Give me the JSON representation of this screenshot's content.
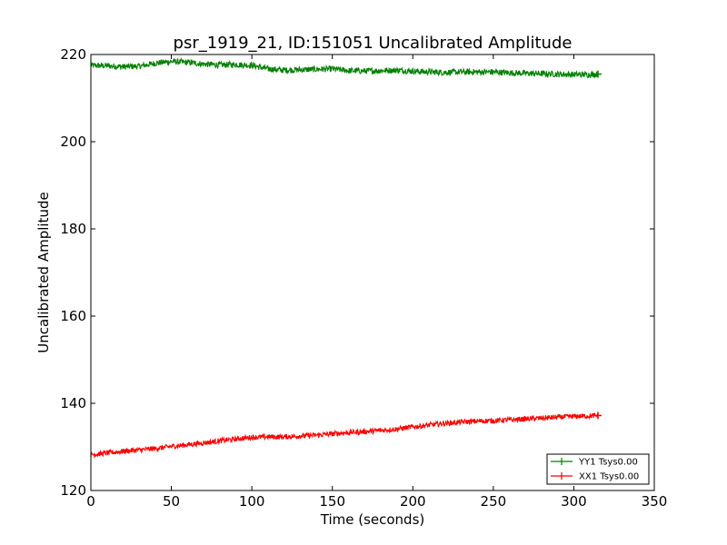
{
  "chart_data": {
    "type": "line",
    "title": "psr_1919_21, ID:151051 Uncalibrated Amplitude",
    "xlabel": "Time (seconds)",
    "ylabel": "Uncalibrated Amplitude",
    "xlim": [
      0,
      350
    ],
    "ylim": [
      120,
      220
    ],
    "xticks": [
      0,
      50,
      100,
      150,
      200,
      250,
      300,
      350
    ],
    "yticks": [
      120,
      140,
      160,
      180,
      200,
      220
    ],
    "legend_position": "lower-right",
    "series": [
      {
        "name": "YY1 Tsys0.00",
        "color": "#008000",
        "x": [
          0,
          10,
          20,
          30,
          40,
          50,
          60,
          70,
          80,
          90,
          100,
          110,
          120,
          130,
          140,
          150,
          160,
          170,
          180,
          190,
          200,
          210,
          220,
          230,
          240,
          250,
          260,
          270,
          280,
          290,
          300,
          310,
          315
        ],
        "y": [
          217.5,
          217.4,
          217.2,
          217.3,
          218.0,
          218.4,
          218.2,
          217.8,
          217.6,
          217.7,
          217.5,
          216.7,
          216.4,
          216.5,
          216.6,
          216.7,
          216.3,
          216.2,
          216.3,
          216.4,
          216.2,
          216.0,
          215.9,
          216.0,
          216.0,
          216.0,
          215.8,
          215.7,
          215.6,
          215.5,
          215.4,
          215.4,
          215.5
        ],
        "noise": 0.7
      },
      {
        "name": "XX1 Tsys0.00",
        "color": "#ff0000",
        "x": [
          0,
          10,
          20,
          30,
          40,
          50,
          60,
          70,
          80,
          90,
          100,
          110,
          120,
          130,
          140,
          150,
          160,
          170,
          180,
          190,
          200,
          210,
          220,
          230,
          240,
          250,
          260,
          270,
          280,
          290,
          300,
          310,
          315
        ],
        "y": [
          128.2,
          128.6,
          129.0,
          129.3,
          129.6,
          130.1,
          130.5,
          130.9,
          131.4,
          131.8,
          132.2,
          132.3,
          132.3,
          132.5,
          132.7,
          133.0,
          133.3,
          133.5,
          133.8,
          134.1,
          134.6,
          135.0,
          135.4,
          135.7,
          135.9,
          136.0,
          136.2,
          136.4,
          136.6,
          136.8,
          137.0,
          137.1,
          137.2
        ],
        "noise": 0.6
      }
    ]
  }
}
